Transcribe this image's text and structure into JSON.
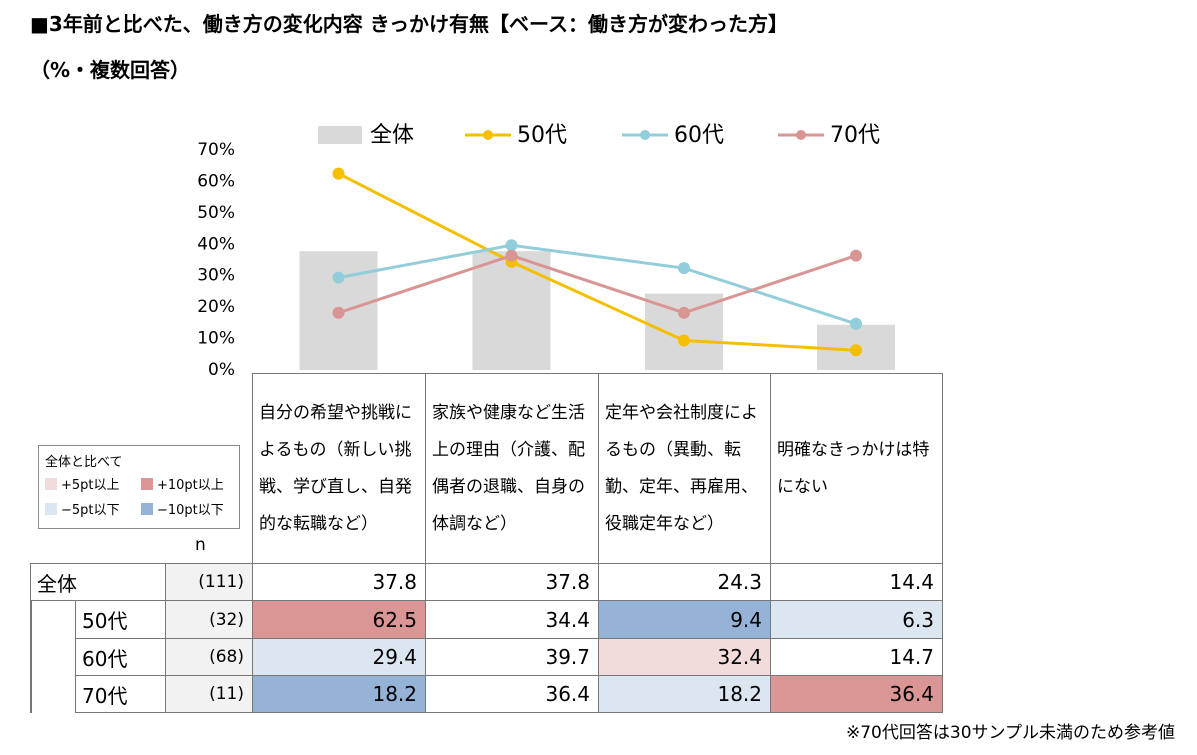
{
  "title": "■3年前と比べた、働き方の変化内容 きっかけ有無【ベース：働き方が変わった方】",
  "subtitle": "（%・複数回答）",
  "chart_data": {
    "type": "bar-line",
    "categories": [
      "自分の希望や挑戦によるもの（新しい挑戦、学び直し、自発的な転職など）",
      "家族や健康など生活上の理由（介護、配偶者の退職、自身の体調など）",
      "定年や会社制度によるもの（異動、転勤、定年、再雇用、役職定年など）",
      "明確なきっかけは特にない"
    ],
    "ylim": [
      0,
      70
    ],
    "yticks": [
      {
        "value": 0,
        "label": "0%"
      },
      {
        "value": 10,
        "label": "10%"
      },
      {
        "value": 20,
        "label": "20%"
      },
      {
        "value": 30,
        "label": "30%"
      },
      {
        "value": 40,
        "label": "40%"
      },
      {
        "value": 50,
        "label": "50%"
      },
      {
        "value": 60,
        "label": "60%"
      },
      {
        "value": 70,
        "label": "70%"
      }
    ],
    "series": [
      {
        "name": "全体",
        "kind": "bar",
        "color": "#d9d9d9",
        "values": [
          37.8,
          37.8,
          24.3,
          14.4
        ]
      },
      {
        "name": "50代",
        "kind": "line",
        "color": "#f5bf00",
        "values": [
          62.5,
          34.4,
          9.4,
          6.3
        ]
      },
      {
        "name": "60代",
        "kind": "line",
        "color": "#92cddc",
        "values": [
          29.4,
          39.7,
          32.4,
          14.7
        ]
      },
      {
        "name": "70代",
        "kind": "line",
        "color": "#d99594",
        "values": [
          18.2,
          36.4,
          18.2,
          36.4
        ]
      }
    ]
  },
  "table": {
    "n_header": "n",
    "n": [
      "(111)",
      "(32)",
      "(68)",
      "(11)"
    ],
    "highlights": [
      [
        null,
        null,
        null,
        null
      ],
      [
        1,
        null,
        3,
        2
      ],
      [
        2,
        null,
        0,
        null
      ],
      [
        3,
        null,
        2,
        1
      ]
    ]
  },
  "highlight_legend": {
    "title": "全体と比べて",
    "items": [
      {
        "label": "+5pt以上",
        "color": "#f2dcdb"
      },
      {
        "label": "+10pt以上",
        "color": "#da9694"
      },
      {
        "label": "−5pt以下",
        "color": "#dce6f1"
      },
      {
        "label": "−10pt以下",
        "color": "#95b3d7"
      }
    ]
  },
  "footnote": "※70代回答は30サンプル未満のため参考値"
}
